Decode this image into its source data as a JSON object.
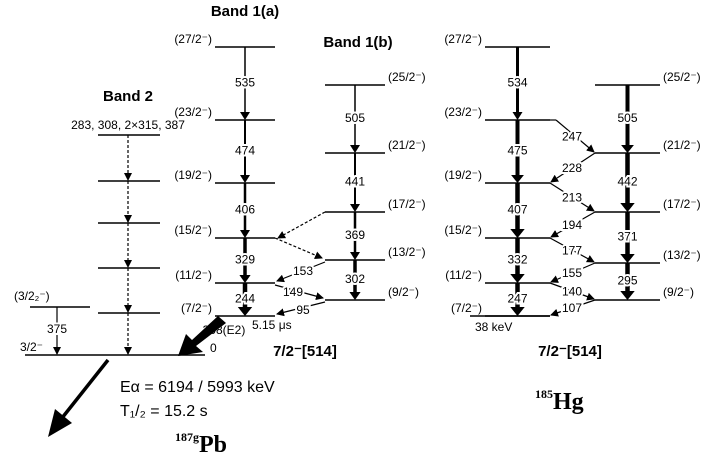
{
  "pb": {
    "band_1a": "Band 1(a)",
    "band_1b": "Band 1(b)",
    "band_2": "Band 2",
    "band_2_gammas": "283, 308, 2×315, 387",
    "levels_1a": [
      "(27/2⁻)",
      "(23/2⁻)",
      "(19/2⁻)",
      "(15/2⁻)",
      "(11/2⁻)",
      "(7/2⁻)"
    ],
    "gammas_1a": [
      "535",
      "474",
      "406",
      "329",
      "244"
    ],
    "levels_1b": [
      "(25/2⁻)",
      "(21/2⁻)",
      "(17/2⁻)",
      "(13/2⁻)",
      "(9/2⁻)"
    ],
    "gammas_1b": [
      "505",
      "441",
      "369",
      "302"
    ],
    "cross_gammas": [
      "153",
      "149",
      "95"
    ],
    "isomer_gamma": "308(E2)",
    "isomer_half_life": "5.15 μs",
    "ground_energy": "0",
    "level_3_2_2": "(3/2₂⁻)",
    "gamma_375": "375",
    "ground_spin": "3/2⁻",
    "alpha_energy": "Eα = 6194 / 5993 keV",
    "half_life": "T₁/₂ = 15.2 s",
    "nilsson": "7/2⁻[514]",
    "mass": "187g",
    "element": "Pb"
  },
  "hg": {
    "levels_left": [
      "(27/2⁻)",
      "(23/2⁻)",
      "(19/2⁻)",
      "(15/2⁻)",
      "(11/2⁻)",
      "(7/2⁻)"
    ],
    "gammas_left": [
      "534",
      "475",
      "407",
      "332",
      "247"
    ],
    "levels_right": [
      "(25/2⁻)",
      "(21/2⁻)",
      "(17/2⁻)",
      "(13/2⁻)",
      "(9/2⁻)"
    ],
    "gammas_right": [
      "505",
      "442",
      "371",
      "295"
    ],
    "cross_gammas": [
      "247",
      "228",
      "213",
      "194",
      "177",
      "155",
      "140",
      "107"
    ],
    "isomer_energy": "38 keV",
    "nilsson": "7/2⁻[514]",
    "mass": "185",
    "element": "Hg"
  }
}
